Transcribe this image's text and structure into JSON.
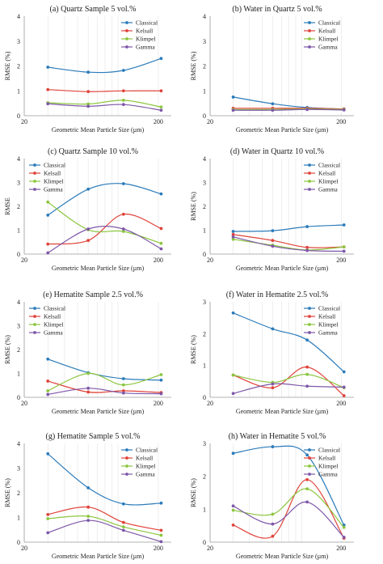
{
  "colors": {
    "Classical": "#2b7bba",
    "Kelsall": "#e0433a",
    "Klimpel": "#8cc63f",
    "Gamma": "#7e57a8"
  },
  "chart_data": [
    {
      "type": "line",
      "title": "(a) Quartz Sample 5 vol.%",
      "xlabel": "Geometric Mean Particle Size (µm)",
      "ylabel": "RMSE (%)",
      "xscale": "log",
      "xlim": [
        20,
        250
      ],
      "ylim": [
        0,
        4
      ],
      "yticks": [
        "0",
        "1",
        "2",
        "3",
        "4"
      ],
      "xticks": [
        {
          "value": 20,
          "label": "20"
        },
        {
          "value": 200,
          "label": "200"
        }
      ],
      "legend": "top-right",
      "x": [
        30,
        60,
        110,
        210
      ],
      "series": [
        {
          "name": "Classical",
          "values": [
            1.95,
            1.75,
            1.82,
            2.3
          ]
        },
        {
          "name": "Kelsall",
          "values": [
            1.05,
            0.97,
            1.0,
            1.0
          ]
        },
        {
          "name": "Klimpel",
          "values": [
            0.52,
            0.47,
            0.62,
            0.35
          ]
        },
        {
          "name": "Gamma",
          "values": [
            0.48,
            0.38,
            0.45,
            0.22
          ]
        }
      ]
    },
    {
      "type": "line",
      "title": "(b) Water in Quartz 5 vol.%",
      "xlabel": "Geometric Mean Particle Size (µm)",
      "ylabel": "RMSE (%)",
      "xscale": "log",
      "xlim": [
        20,
        250
      ],
      "ylim": [
        0,
        4
      ],
      "yticks": [
        "0",
        "1",
        "2",
        "3",
        "4"
      ],
      "xticks": [
        {
          "value": 20,
          "label": "20"
        },
        {
          "value": 200,
          "label": "200"
        }
      ],
      "legend": "top-right",
      "x": [
        30,
        60,
        110,
        210
      ],
      "series": [
        {
          "name": "Classical",
          "values": [
            0.75,
            0.48,
            0.33,
            0.27
          ]
        },
        {
          "name": "Kelsall",
          "values": [
            0.3,
            0.3,
            0.3,
            0.27
          ]
        },
        {
          "name": "Klimpel",
          "values": [
            0.25,
            0.25,
            0.27,
            0.25
          ]
        },
        {
          "name": "Gamma",
          "values": [
            0.22,
            0.22,
            0.25,
            0.23
          ]
        }
      ]
    },
    {
      "type": "line",
      "title": "(c) Quartz Sample 10 vol.%",
      "xlabel": "Geometric Mean Particle Size (µm)",
      "ylabel": "RMSE",
      "xscale": "log",
      "xlim": [
        20,
        250
      ],
      "ylim": [
        0,
        4
      ],
      "yticks": [
        "0",
        "1",
        "2",
        "3",
        "4"
      ],
      "xticks": [
        {
          "value": 20,
          "label": "20"
        },
        {
          "value": 200,
          "label": "200"
        }
      ],
      "legend": "top-left",
      "x": [
        30,
        60,
        110,
        210
      ],
      "series": [
        {
          "name": "Classical",
          "values": [
            1.63,
            2.72,
            2.95,
            2.52
          ]
        },
        {
          "name": "Kelsall",
          "values": [
            0.42,
            0.57,
            1.67,
            1.07
          ]
        },
        {
          "name": "Klimpel",
          "values": [
            2.18,
            1.02,
            0.95,
            0.45
          ]
        },
        {
          "name": "Gamma",
          "values": [
            0.05,
            1.05,
            1.05,
            0.22
          ]
        }
      ]
    },
    {
      "type": "line",
      "title": "(d) Water in Quartz 10 vol.%",
      "xlabel": "Geometric Mean Particle Size (µm)",
      "ylabel": "RMSE (%)",
      "xscale": "log",
      "xlim": [
        20,
        250
      ],
      "ylim": [
        0,
        4
      ],
      "yticks": [
        "0",
        "1",
        "2",
        "3",
        "4"
      ],
      "xticks": [
        {
          "value": 20,
          "label": "20"
        },
        {
          "value": 200,
          "label": "200"
        }
      ],
      "legend": "top-right",
      "x": [
        30,
        60,
        110,
        210
      ],
      "series": [
        {
          "name": "Classical",
          "values": [
            0.95,
            0.98,
            1.15,
            1.22
          ]
        },
        {
          "name": "Kelsall",
          "values": [
            0.82,
            0.57,
            0.28,
            0.3
          ]
        },
        {
          "name": "Klimpel",
          "values": [
            0.62,
            0.37,
            0.17,
            0.3
          ]
        },
        {
          "name": "Gamma",
          "values": [
            0.72,
            0.33,
            0.15,
            0.12
          ]
        }
      ]
    },
    {
      "type": "line",
      "title": "(e) Hematite Sample 2.5 vol.%",
      "xlabel": "Geometric Mean Particle Size (µm)",
      "ylabel": "RMSE (%)",
      "xscale": "log",
      "xlim": [
        20,
        250
      ],
      "ylim": [
        0,
        4
      ],
      "yticks": [
        "0",
        "1",
        "2",
        "3",
        "4"
      ],
      "xticks": [
        {
          "value": 20,
          "label": "20"
        },
        {
          "value": 200,
          "label": "200"
        }
      ],
      "legend": "top-left",
      "x": [
        30,
        60,
        110,
        210
      ],
      "series": [
        {
          "name": "Classical",
          "values": [
            1.6,
            1.03,
            0.78,
            0.72
          ]
        },
        {
          "name": "Kelsall",
          "values": [
            0.68,
            0.22,
            0.27,
            0.2
          ]
        },
        {
          "name": "Klimpel",
          "values": [
            0.27,
            1.0,
            0.52,
            0.95
          ]
        },
        {
          "name": "Gamma",
          "values": [
            0.12,
            0.38,
            0.18,
            0.15
          ]
        }
      ]
    },
    {
      "type": "line",
      "title": "(f) Water in Hematite 2.5 vol.%",
      "xlabel": "Geometric Mean Particle Size (µm)",
      "ylabel": "RMSE (%)",
      "xscale": "log",
      "xlim": [
        20,
        250
      ],
      "ylim": [
        0,
        3
      ],
      "yticks": [
        "0",
        "1",
        "2",
        "3"
      ],
      "xticks": [
        {
          "value": 20,
          "label": "20"
        },
        {
          "value": 200,
          "label": "200"
        }
      ],
      "legend": "top-right",
      "x": [
        30,
        60,
        110,
        210
      ],
      "series": [
        {
          "name": "Classical",
          "values": [
            2.65,
            2.15,
            1.8,
            0.8
          ]
        },
        {
          "name": "Kelsall",
          "values": [
            0.7,
            0.3,
            0.95,
            0.05
          ]
        },
        {
          "name": "Klimpel",
          "values": [
            0.7,
            0.47,
            0.72,
            0.3
          ]
        },
        {
          "name": "Gamma",
          "values": [
            0.12,
            0.42,
            0.35,
            0.32
          ]
        }
      ]
    },
    {
      "type": "line",
      "title": "(g) Hematite Sample 5 vol.%",
      "xlabel": "Geometric Mean Particle Size (µm)",
      "ylabel": "RMSE (%)",
      "xscale": "log",
      "xlim": [
        20,
        250
      ],
      "ylim": [
        0,
        4
      ],
      "yticks": [
        "0",
        "1",
        "2",
        "3",
        "4"
      ],
      "xticks": [
        {
          "value": 20,
          "label": "20"
        },
        {
          "value": 200,
          "label": "200"
        }
      ],
      "legend": "top-right",
      "x": [
        30,
        60,
        110,
        210
      ],
      "series": [
        {
          "name": "Classical",
          "values": [
            3.58,
            2.2,
            1.55,
            1.58
          ]
        },
        {
          "name": "Kelsall",
          "values": [
            1.12,
            1.42,
            0.8,
            0.48
          ]
        },
        {
          "name": "Klimpel",
          "values": [
            0.95,
            1.05,
            0.62,
            0.28
          ]
        },
        {
          "name": "Gamma",
          "values": [
            0.38,
            0.88,
            0.48,
            0.02
          ]
        }
      ]
    },
    {
      "type": "line",
      "title": "(h) Water in Hematite 5 vol.%",
      "xlabel": "Geometric Mean Particle Size (µm)",
      "ylabel": "RMSE (%)",
      "xscale": "log",
      "xlim": [
        20,
        250
      ],
      "ylim": [
        0,
        3
      ],
      "yticks": [
        "0",
        "1",
        "2",
        "3"
      ],
      "xticks": [
        {
          "value": 20,
          "label": "20"
        },
        {
          "value": 200,
          "label": "200"
        }
      ],
      "legend": "top-right",
      "x": [
        30,
        60,
        110,
        210
      ],
      "series": [
        {
          "name": "Classical",
          "values": [
            2.7,
            2.9,
            2.65,
            0.52
          ]
        },
        {
          "name": "Kelsall",
          "values": [
            0.52,
            0.18,
            1.9,
            0.12
          ]
        },
        {
          "name": "Klimpel",
          "values": [
            0.97,
            0.85,
            1.62,
            0.45
          ]
        },
        {
          "name": "Gamma",
          "values": [
            1.1,
            0.55,
            1.22,
            0.15
          ]
        }
      ]
    }
  ]
}
